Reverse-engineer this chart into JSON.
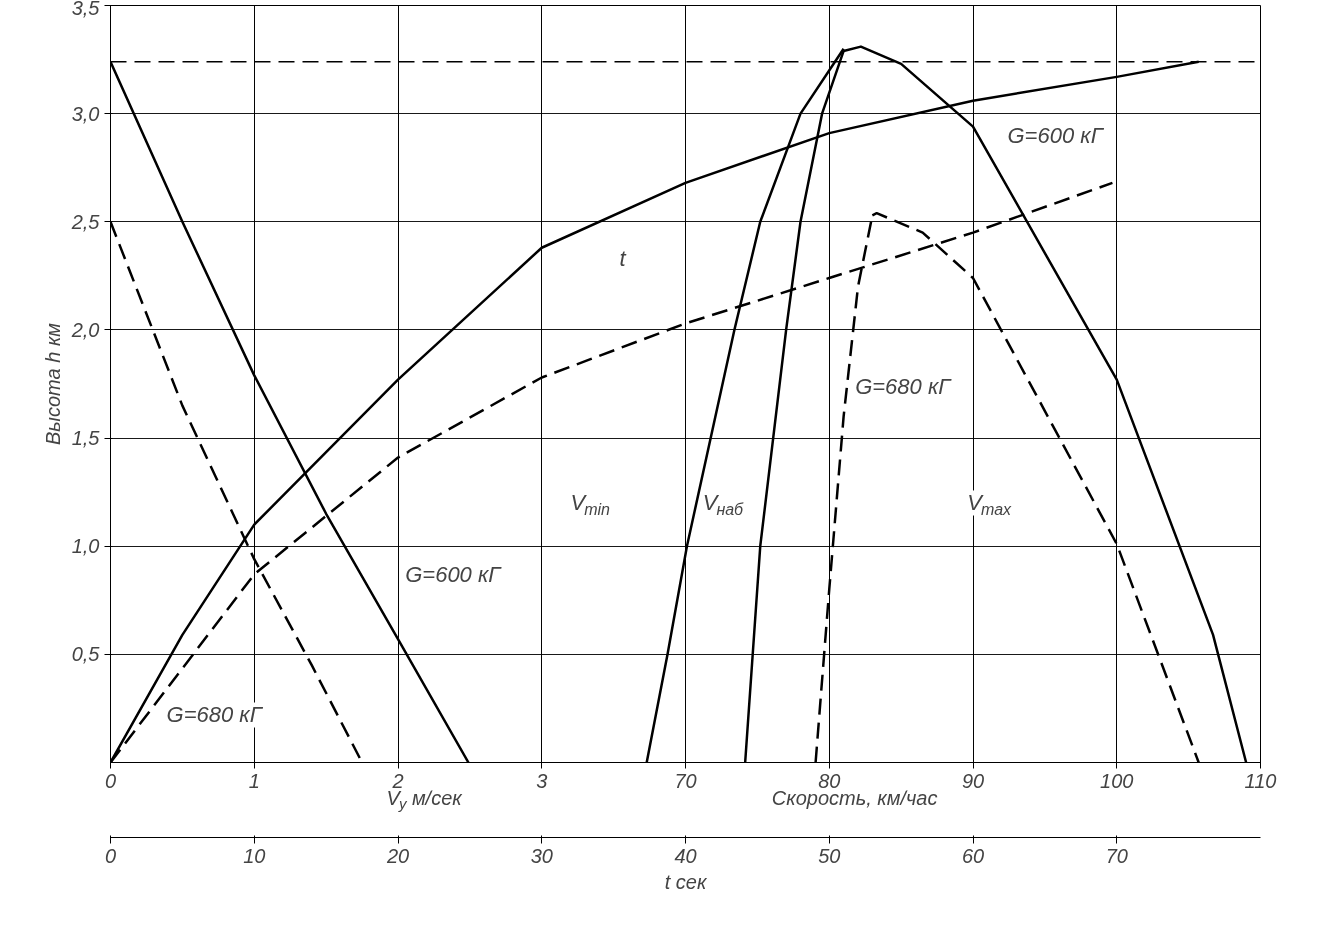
{
  "chart_data": [
    {
      "type": "line",
      "ylabel": "Высота h км",
      "xlabel": "V$_{y}$ м/сек",
      "x2label": "Скорость, км/час",
      "xlim": [
        0,
        8
      ],
      "xticks": [
        0,
        1,
        2,
        3
      ],
      "x2lim": [
        30,
        110
      ],
      "x2ticks": [
        70,
        80,
        90,
        100,
        110
      ],
      "ylim": [
        0,
        3.5
      ],
      "yticks": [
        {
          "value": 0.5,
          "label": "0,5"
        },
        {
          "value": 1.0,
          "label": "1,0"
        },
        {
          "value": 1.5,
          "label": "1,5"
        },
        {
          "value": 2.0,
          "label": "2,0"
        },
        {
          "value": 2.5,
          "label": "2,5"
        },
        {
          "value": 3.0,
          "label": "3,0"
        },
        {
          "value": 3.5,
          "label": "3,5"
        }
      ],
      "grid": true,
      "marker": "none",
      "series": [
        {
          "line_style": "solid",
          "color": "#000000",
          "x": [
            0,
            0.5,
            1,
            1.5,
            2,
            2.49
          ],
          "values": [
            3.24,
            2.5,
            1.79,
            1.15,
            0.57,
            0
          ]
        },
        {
          "line_style": "dashed",
          "color": "#000000",
          "x": [
            0,
            0.5,
            1,
            1.4,
            1.75
          ],
          "values": [
            2.5,
            1.65,
            0.94,
            0.45,
            0
          ]
        },
        {
          "axis": "x2",
          "line_style": "solid",
          "color": "#000000",
          "x": [
            67.3,
            68.75,
            70.1,
            73.4,
            75.2,
            78.0,
            81.0
          ],
          "values": [
            0,
            0.5,
            1.0,
            2.0,
            2.5,
            3.0,
            3.3
          ]
        },
        {
          "axis": "x2",
          "line_style": "solid",
          "color": "#000000",
          "x": [
            74.15,
            75.2,
            77.0,
            78.0,
            79.5,
            81.0
          ],
          "values": [
            0,
            1.0,
            2.0,
            2.5,
            3.0,
            3.29
          ]
        },
        {
          "axis": "x2",
          "line_style": "solid",
          "color": "#000000",
          "x": [
            81.0,
            82.2,
            85,
            90,
            100,
            106.7,
            109.0
          ],
          "values": [
            3.29,
            3.31,
            3.23,
            2.94,
            1.77,
            0.59,
            0
          ]
        },
        {
          "axis": "x2",
          "line_style": "dashed",
          "color": "#000000",
          "x": [
            79.05,
            80.0,
            81.0,
            82.0,
            83.0
          ],
          "values": [
            0,
            0.8,
            1.6,
            2.2,
            2.53
          ]
        },
        {
          "axis": "x2",
          "line_style": "dashed",
          "color": "#000000",
          "x": [
            83.0,
            83.3,
            86.5,
            90,
            100,
            105.7
          ],
          "values": [
            2.53,
            2.54,
            2.45,
            2.24,
            1.01,
            0
          ]
        }
      ],
      "ref_lines": [
        {
          "axis": "y",
          "value": 3.24,
          "label": null,
          "line_style": "dashed",
          "color": "#000000"
        }
      ],
      "annotations": [
        "G=600 кГ",
        "G=680 кГ",
        "G=600 кГ",
        "G=680 кГ",
        "t",
        "V$_{min}$",
        "V$_{наб}$",
        "V$_{max}$"
      ]
    },
    {
      "type": "line",
      "xlabel": "t сек",
      "xlim": [
        0,
        80
      ],
      "xticks": [
        0,
        10,
        20,
        30,
        40,
        50,
        60,
        70
      ],
      "ylim": [
        0,
        3.5
      ],
      "tick_labels": "x",
      "grid": true,
      "marker": "none",
      "series": [
        {
          "line_style": "solid",
          "color": "#000000",
          "x": [
            0,
            5,
            10,
            20,
            30,
            40,
            50,
            60,
            70,
            75.7
          ],
          "values": [
            0,
            0.59,
            1.1,
            1.77,
            2.38,
            2.68,
            2.91,
            3.06,
            3.17,
            3.24
          ]
        },
        {
          "line_style": "dashed",
          "color": "#000000",
          "x": [
            0,
            10,
            20,
            30,
            40,
            50,
            60,
            69.7
          ],
          "values": [
            0,
            0.87,
            1.41,
            1.78,
            2.03,
            2.24,
            2.45,
            2.68
          ]
        }
      ]
    }
  ]
}
